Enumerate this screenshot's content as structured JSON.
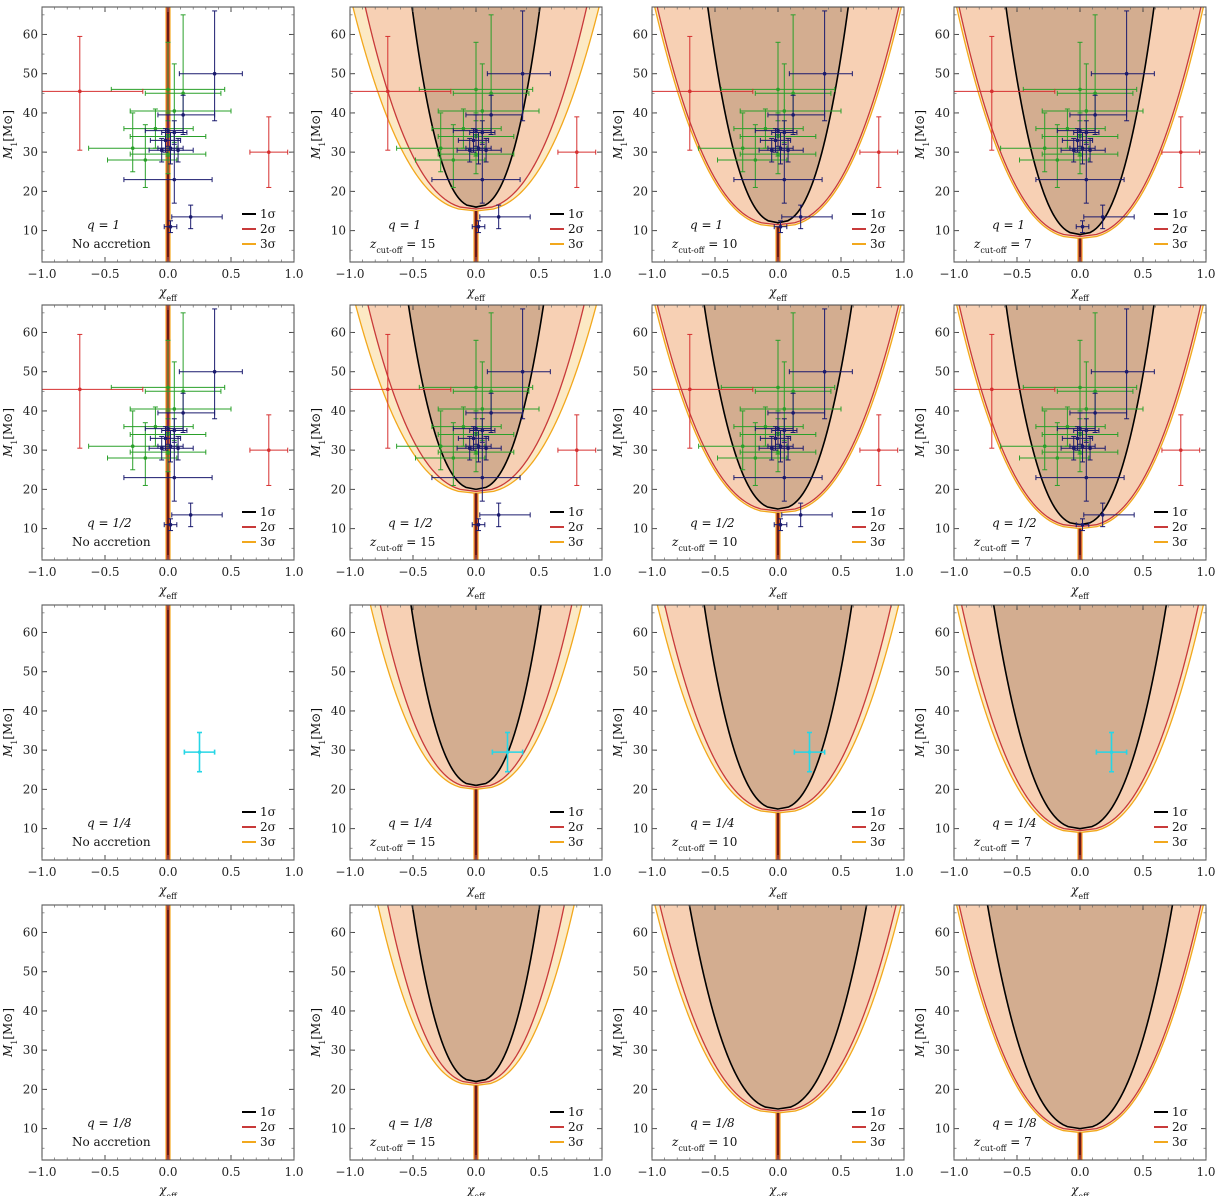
{
  "figure": {
    "x_axis_label": "χ",
    "x_axis_label_sub": "eff",
    "y_axis_label": "M",
    "y_axis_label_sub": "1",
    "y_axis_label_unit": "[M⊙]",
    "legend": [
      "1σ",
      "2σ",
      "3σ"
    ],
    "colors": {
      "one_sigma_line": "#000000",
      "two_sigma_line": "#c83a3a",
      "three_sigma_line": "#f2a81d",
      "one_sigma_fill": "#d3ad90",
      "two_sigma_fill": "#f7d0b4",
      "three_sigma_fill": "#fce9c4",
      "o3_events": "#1a1a6e",
      "o2_events": "#2aa02a",
      "outlier_events": "#d63030",
      "highlight_event": "#26d6e6"
    }
  },
  "chart_data": [
    {
      "panel": "r1c1",
      "type": "scatter",
      "q_label": "q = 1",
      "scenario_label": "No accretion",
      "scenario_sub": "",
      "scenario_value": "",
      "xlim": [
        -1,
        1
      ],
      "ylim": [
        2,
        67
      ],
      "xticks": [
        "−1.0",
        "−0.5",
        "0.0",
        "0.5",
        "1.0"
      ],
      "yticks": [
        "10",
        "20",
        "30",
        "40",
        "50",
        "60"
      ],
      "contours": {
        "one_sigma": {
          "tip": 67,
          "w70": 0.0
        },
        "two_sigma": {
          "tip": 67,
          "w70": 0.0
        },
        "three_sigma": {
          "tip": 67,
          "w70": 0.0
        }
      },
      "events": "catalog"
    },
    {
      "panel": "r1c2",
      "type": "scatter",
      "q_label": "q = 1",
      "scenario_label": "z",
      "scenario_sub": "cut-off",
      "scenario_value": " = 15",
      "xlim": [
        -1,
        1
      ],
      "ylim": [
        2,
        67
      ],
      "xticks": [
        "−1.0",
        "−0.5",
        "0.0",
        "0.5",
        "1.0"
      ],
      "yticks": [
        "10",
        "20",
        "30",
        "40",
        "50",
        "60"
      ],
      "contours": {
        "one_sigma": {
          "tip": 16,
          "w70": 0.52
        },
        "two_sigma": {
          "tip": 15.5,
          "w70": 0.9
        },
        "three_sigma": {
          "tip": 15,
          "w70": 1.0
        }
      },
      "events": "catalog"
    },
    {
      "panel": "r1c3",
      "type": "scatter",
      "q_label": "q = 1",
      "scenario_label": "z",
      "scenario_sub": "cut-off",
      "scenario_value": " = 10",
      "xlim": [
        -1,
        1
      ],
      "ylim": [
        2,
        67
      ],
      "xticks": [
        "−1.0",
        "−0.5",
        "0.0",
        "0.5",
        "1.0"
      ],
      "yticks": [
        "10",
        "20",
        "30",
        "40",
        "50",
        "60"
      ],
      "contours": {
        "one_sigma": {
          "tip": 12,
          "w70": 0.57
        },
        "two_sigma": {
          "tip": 11.5,
          "w70": 0.98
        },
        "three_sigma": {
          "tip": 11,
          "w70": 1.0
        }
      },
      "events": "catalog"
    },
    {
      "panel": "r1c4",
      "type": "scatter",
      "q_label": "q = 1",
      "scenario_label": "z",
      "scenario_sub": "cut-off",
      "scenario_value": " = 7",
      "xlim": [
        -1,
        1
      ],
      "ylim": [
        2,
        67
      ],
      "xticks": [
        "−1.0",
        "−0.5",
        "0.0",
        "0.5",
        "1.0"
      ],
      "yticks": [
        "10",
        "20",
        "30",
        "40",
        "50",
        "60"
      ],
      "contours": {
        "one_sigma": {
          "tip": 9,
          "w70": 0.6
        },
        "two_sigma": {
          "tip": 8.5,
          "w70": 0.98
        },
        "three_sigma": {
          "tip": 8,
          "w70": 1.0
        }
      },
      "events": "catalog"
    },
    {
      "panel": "r2c1",
      "type": "scatter",
      "q_label": "q = 1/2",
      "scenario_label": "No accretion",
      "scenario_sub": "",
      "scenario_value": "",
      "xlim": [
        -1,
        1
      ],
      "ylim": [
        2,
        67
      ],
      "xticks": [
        "−1.0",
        "−0.5",
        "0.0",
        "0.5",
        "1.0"
      ],
      "yticks": [
        "10",
        "20",
        "30",
        "40",
        "50",
        "60"
      ],
      "contours": {
        "one_sigma": {
          "tip": 67,
          "w70": 0.0
        },
        "two_sigma": {
          "tip": 67,
          "w70": 0.0
        },
        "three_sigma": {
          "tip": 67,
          "w70": 0.0
        }
      },
      "events": "catalog"
    },
    {
      "panel": "r2c2",
      "type": "scatter",
      "q_label": "q = 1/2",
      "scenario_label": "z",
      "scenario_sub": "cut-off",
      "scenario_value": " = 15",
      "xlim": [
        -1,
        1
      ],
      "ylim": [
        2,
        67
      ],
      "xticks": [
        "−1.0",
        "−0.5",
        "0.0",
        "0.5",
        "1.0"
      ],
      "yticks": [
        "10",
        "20",
        "30",
        "40",
        "50",
        "60"
      ],
      "contours": {
        "one_sigma": {
          "tip": 20,
          "w70": 0.55
        },
        "two_sigma": {
          "tip": 19.5,
          "w70": 0.88
        },
        "three_sigma": {
          "tip": 19,
          "w70": 0.98
        }
      },
      "events": "catalog"
    },
    {
      "panel": "r2c3",
      "type": "scatter",
      "q_label": "q = 1/2",
      "scenario_label": "z",
      "scenario_sub": "cut-off",
      "scenario_value": " = 10",
      "xlim": [
        -1,
        1
      ],
      "ylim": [
        2,
        67
      ],
      "xticks": [
        "−1.0",
        "−0.5",
        "0.0",
        "0.5",
        "1.0"
      ],
      "yticks": [
        "10",
        "20",
        "30",
        "40",
        "50",
        "60"
      ],
      "contours": {
        "one_sigma": {
          "tip": 15,
          "w70": 0.6
        },
        "two_sigma": {
          "tip": 14.5,
          "w70": 0.98
        },
        "three_sigma": {
          "tip": 14,
          "w70": 1.0
        }
      },
      "events": "catalog"
    },
    {
      "panel": "r2c4",
      "type": "scatter",
      "q_label": "q = 1/2",
      "scenario_label": "z",
      "scenario_sub": "cut-off",
      "scenario_value": " = 7",
      "xlim": [
        -1,
        1
      ],
      "ylim": [
        2,
        67
      ],
      "xticks": [
        "−1.0",
        "−0.5",
        "0.0",
        "0.5",
        "1.0"
      ],
      "yticks": [
        "10",
        "20",
        "30",
        "40",
        "50",
        "60"
      ],
      "contours": {
        "one_sigma": {
          "tip": 11,
          "w70": 0.6
        },
        "two_sigma": {
          "tip": 10.5,
          "w70": 0.98
        },
        "three_sigma": {
          "tip": 10,
          "w70": 1.0
        }
      },
      "events": "catalog"
    },
    {
      "panel": "r3c1",
      "type": "scatter",
      "q_label": "q = 1/4",
      "scenario_label": "No accretion",
      "scenario_sub": "",
      "scenario_value": "",
      "xlim": [
        -1,
        1
      ],
      "ylim": [
        2,
        67
      ],
      "xticks": [
        "−1.0",
        "−0.5",
        "0.0",
        "0.5",
        "1.0"
      ],
      "yticks": [
        "10",
        "20",
        "30",
        "40",
        "50",
        "60"
      ],
      "contours": {
        "one_sigma": {
          "tip": 67,
          "w70": 0.0
        },
        "two_sigma": {
          "tip": 67,
          "w70": 0.0
        },
        "three_sigma": {
          "tip": 67,
          "w70": 0.0
        }
      },
      "events": "highlight"
    },
    {
      "panel": "r3c2",
      "type": "scatter",
      "q_label": "q = 1/4",
      "scenario_label": "z",
      "scenario_sub": "cut-off",
      "scenario_value": " = 15",
      "xlim": [
        -1,
        1
      ],
      "ylim": [
        2,
        67
      ],
      "xticks": [
        "−1.0",
        "−0.5",
        "0.0",
        "0.5",
        "1.0"
      ],
      "yticks": [
        "10",
        "20",
        "30",
        "40",
        "50",
        "60"
      ],
      "contours": {
        "one_sigma": {
          "tip": 21,
          "w70": 0.53
        },
        "two_sigma": {
          "tip": 20.5,
          "w70": 0.78
        },
        "three_sigma": {
          "tip": 20,
          "w70": 0.86
        }
      },
      "events": "highlight"
    },
    {
      "panel": "r3c3",
      "type": "scatter",
      "q_label": "q = 1/4",
      "scenario_label": "z",
      "scenario_sub": "cut-off",
      "scenario_value": " = 10",
      "xlim": [
        -1,
        1
      ],
      "ylim": [
        2,
        67
      ],
      "xticks": [
        "−1.0",
        "−0.5",
        "0.0",
        "0.5",
        "1.0"
      ],
      "yticks": [
        "10",
        "20",
        "30",
        "40",
        "50",
        "60"
      ],
      "contours": {
        "one_sigma": {
          "tip": 15,
          "w70": 0.6
        },
        "two_sigma": {
          "tip": 14.5,
          "w70": 0.92
        },
        "three_sigma": {
          "tip": 14,
          "w70": 0.98
        }
      },
      "events": "highlight"
    },
    {
      "panel": "r3c4",
      "type": "scatter",
      "q_label": "q = 1/4",
      "scenario_label": "z",
      "scenario_sub": "cut-off",
      "scenario_value": " = 7",
      "xlim": [
        -1,
        1
      ],
      "ylim": [
        2,
        67
      ],
      "xticks": [
        "−1.0",
        "−0.5",
        "0.0",
        "0.5",
        "1.0"
      ],
      "yticks": [
        "10",
        "20",
        "30",
        "40",
        "50",
        "60"
      ],
      "contours": {
        "one_sigma": {
          "tip": 10,
          "w70": 0.7
        },
        "two_sigma": {
          "tip": 9.5,
          "w70": 0.96
        },
        "three_sigma": {
          "tip": 9,
          "w70": 1.0
        }
      },
      "events": "highlight"
    },
    {
      "panel": "r4c1",
      "type": "scatter",
      "q_label": "q = 1/8",
      "scenario_label": "No accretion",
      "scenario_sub": "",
      "scenario_value": "",
      "xlim": [
        -1,
        1
      ],
      "ylim": [
        2,
        67
      ],
      "xticks": [
        "−1.0",
        "−0.5",
        "0.0",
        "0.5",
        "1.0"
      ],
      "yticks": [
        "10",
        "20",
        "30",
        "40",
        "50",
        "60"
      ],
      "contours": {
        "one_sigma": {
          "tip": 67,
          "w70": 0.0
        },
        "two_sigma": {
          "tip": 67,
          "w70": 0.0
        },
        "three_sigma": {
          "tip": 67,
          "w70": 0.0
        }
      },
      "events": "none"
    },
    {
      "panel": "r4c2",
      "type": "scatter",
      "q_label": "q = 1/8",
      "scenario_label": "z",
      "scenario_sub": "cut-off",
      "scenario_value": " = 15",
      "xlim": [
        -1,
        1
      ],
      "ylim": [
        2,
        67
      ],
      "xticks": [
        "−1.0",
        "−0.5",
        "0.0",
        "0.5",
        "1.0"
      ],
      "yticks": [
        "10",
        "20",
        "30",
        "40",
        "50",
        "60"
      ],
      "contours": {
        "one_sigma": {
          "tip": 22,
          "w70": 0.52
        },
        "two_sigma": {
          "tip": 21.5,
          "w70": 0.72
        },
        "three_sigma": {
          "tip": 21,
          "w70": 0.8
        }
      },
      "events": "none"
    },
    {
      "panel": "r4c3",
      "type": "scatter",
      "q_label": "q = 1/8",
      "scenario_label": "z",
      "scenario_sub": "cut-off",
      "scenario_value": " = 10",
      "xlim": [
        -1,
        1
      ],
      "ylim": [
        2,
        67
      ],
      "xticks": [
        "−1.0",
        "−0.5",
        "0.0",
        "0.5",
        "1.0"
      ],
      "yticks": [
        "10",
        "20",
        "30",
        "40",
        "50",
        "60"
      ],
      "contours": {
        "one_sigma": {
          "tip": 15,
          "w70": 0.72
        },
        "two_sigma": {
          "tip": 14.5,
          "w70": 0.96
        },
        "three_sigma": {
          "tip": 14,
          "w70": 1.0
        }
      },
      "events": "none"
    },
    {
      "panel": "r4c4",
      "type": "scatter",
      "q_label": "q = 1/8",
      "scenario_label": "z",
      "scenario_sub": "cut-off",
      "scenario_value": " = 7",
      "xlim": [
        -1,
        1
      ],
      "ylim": [
        2,
        67
      ],
      "xticks": [
        "−1.0",
        "−0.5",
        "0.0",
        "0.5",
        "1.0"
      ],
      "yticks": [
        "10",
        "20",
        "30",
        "40",
        "50",
        "60"
      ],
      "contours": {
        "one_sigma": {
          "tip": 10,
          "w70": 0.75
        },
        "two_sigma": {
          "tip": 9.5,
          "w70": 0.98
        },
        "three_sigma": {
          "tip": 9,
          "w70": 1.0
        }
      },
      "events": "none"
    }
  ],
  "events": {
    "o3_events": [
      {
        "x": 0.0,
        "y": 35.5,
        "xerr": [
          0.18,
          0.12
        ],
        "yerr": [
          4,
          4
        ]
      },
      {
        "x": 0.05,
        "y": 35,
        "xerr": [
          0.1,
          0.1
        ],
        "yerr": [
          3,
          3
        ]
      },
      {
        "x": -0.02,
        "y": 33,
        "xerr": [
          0.12,
          0.12
        ],
        "yerr": [
          3,
          3
        ]
      },
      {
        "x": 0.02,
        "y": 31,
        "xerr": [
          0.1,
          0.1
        ],
        "yerr": [
          4,
          4
        ]
      },
      {
        "x": 0.08,
        "y": 30.5,
        "xerr": [
          0.12,
          0.12
        ],
        "yerr": [
          3,
          3
        ]
      },
      {
        "x": -0.05,
        "y": 30.5,
        "xerr": [
          0.1,
          0.1
        ],
        "yerr": [
          3,
          3
        ]
      },
      {
        "x": 0.37,
        "y": 50,
        "xerr": [
          0.28,
          0.22
        ],
        "yerr": [
          12,
          16
        ]
      },
      {
        "x": 0.12,
        "y": 39.5,
        "xerr": [
          0.2,
          0.25
        ],
        "yerr": [
          5,
          5
        ]
      },
      {
        "x": 0.05,
        "y": 23,
        "xerr": [
          0.4,
          0.3
        ],
        "yerr": [
          6,
          12
        ]
      },
      {
        "x": 0.18,
        "y": 13.5,
        "xerr": [
          0.15,
          0.25
        ],
        "yerr": [
          3,
          3
        ]
      },
      {
        "x": 0.02,
        "y": 11,
        "xerr": [
          0.05,
          0.05
        ],
        "yerr": [
          1.5,
          1.5
        ]
      }
    ],
    "o2_events": [
      {
        "x": 0.0,
        "y": 46,
        "xerr": [
          0.45,
          0.45
        ],
        "yerr": [
          8,
          12
        ]
      },
      {
        "x": 0.05,
        "y": 40.5,
        "xerr": [
          0.35,
          0.45
        ],
        "yerr": [
          8,
          12
        ]
      },
      {
        "x": -0.1,
        "y": 36,
        "xerr": [
          0.25,
          0.3
        ],
        "yerr": [
          5,
          5
        ]
      },
      {
        "x": 0.0,
        "y": 34,
        "xerr": [
          0.3,
          0.3
        ],
        "yerr": [
          5,
          6
        ]
      },
      {
        "x": -0.28,
        "y": 31,
        "xerr": [
          0.35,
          0.35
        ],
        "yerr": [
          6,
          9
        ]
      },
      {
        "x": 0.0,
        "y": 29.5,
        "xerr": [
          0.3,
          0.3
        ],
        "yerr": [
          5,
          5
        ]
      },
      {
        "x": -0.18,
        "y": 28,
        "xerr": [
          0.3,
          0.25
        ],
        "yerr": [
          7,
          9
        ]
      },
      {
        "x": 0.12,
        "y": 45,
        "xerr": [
          0.3,
          0.3
        ],
        "yerr": [
          10,
          20
        ]
      }
    ],
    "outlier_events": [
      {
        "x": -0.7,
        "y": 45.5,
        "xerr": [
          0.3,
          0.5
        ],
        "yerr": [
          15,
          14
        ]
      },
      {
        "x": 0.8,
        "y": 30,
        "xerr": [
          0.15,
          0.15
        ],
        "yerr": [
          9,
          9
        ]
      }
    ],
    "highlight_event": [
      {
        "x": 0.25,
        "y": 29.5,
        "xerr": [
          0.12,
          0.12
        ],
        "yerr": [
          5,
          5
        ]
      }
    ]
  }
}
